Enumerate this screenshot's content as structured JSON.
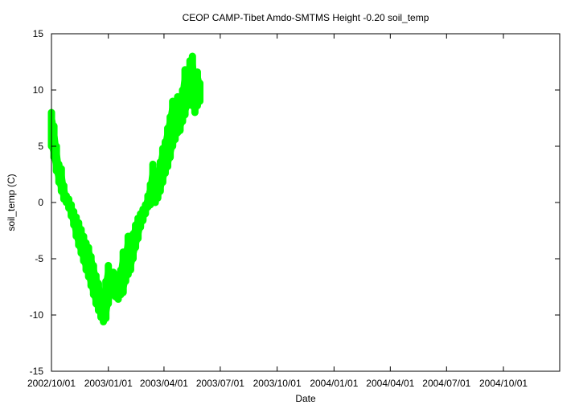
{
  "chart_data": {
    "type": "scatter",
    "title": "CEOP CAMP-Tibet Amdo-SMTMS Height -0.20 soil_temp",
    "xlabel": "Date",
    "ylabel": "soil_temp (C)",
    "x_type": "date",
    "xlim": [
      "2002-10-01",
      "2004-12-31"
    ],
    "ylim": [
      -15,
      15
    ],
    "x_tick_labels": [
      "2002/10/01",
      "2003/01/01",
      "2003/04/01",
      "2003/07/01",
      "2003/10/01",
      "2004/01/01",
      "2004/04/01",
      "2004/07/01",
      "2004/10/01"
    ],
    "y_tick_labels": [
      "-15",
      "-10",
      "-5",
      "0",
      "5",
      "10",
      "15"
    ],
    "grid": false,
    "series": [
      {
        "color": "#00ff00",
        "points": [
          {
            "date": "2002-10-01",
            "min": 5.0,
            "max": 8.0
          },
          {
            "date": "2002-10-05",
            "min": 4.0,
            "max": 6.8
          },
          {
            "date": "2002-10-09",
            "min": 2.8,
            "max": 5.0
          },
          {
            "date": "2002-10-13",
            "min": 1.8,
            "max": 3.4
          },
          {
            "date": "2002-10-17",
            "min": 1.0,
            "max": 3.0
          },
          {
            "date": "2002-10-21",
            "min": 0.3,
            "max": 1.5
          },
          {
            "date": "2002-10-25",
            "min": 0.0,
            "max": 0.6
          },
          {
            "date": "2002-10-29",
            "min": -0.5,
            "max": 0.3
          },
          {
            "date": "2002-11-02",
            "min": -1.2,
            "max": -0.2
          },
          {
            "date": "2002-11-06",
            "min": -2.0,
            "max": -0.8
          },
          {
            "date": "2002-11-10",
            "min": -3.0,
            "max": -1.3
          },
          {
            "date": "2002-11-14",
            "min": -3.8,
            "max": -1.8
          },
          {
            "date": "2002-11-18",
            "min": -4.5,
            "max": -2.4
          },
          {
            "date": "2002-11-22",
            "min": -5.2,
            "max": -3.0
          },
          {
            "date": "2002-11-26",
            "min": -6.0,
            "max": -3.6
          },
          {
            "date": "2002-11-30",
            "min": -6.6,
            "max": -4.0
          },
          {
            "date": "2002-12-04",
            "min": -7.4,
            "max": -4.8
          },
          {
            "date": "2002-12-08",
            "min": -8.2,
            "max": -5.6
          },
          {
            "date": "2002-12-12",
            "min": -9.0,
            "max": -6.5
          },
          {
            "date": "2002-12-16",
            "min": -9.6,
            "max": -7.2
          },
          {
            "date": "2002-12-20",
            "min": -10.2,
            "max": -8.0
          },
          {
            "date": "2002-12-24",
            "min": -10.6,
            "max": -8.4
          },
          {
            "date": "2002-12-28",
            "min": -10.3,
            "max": -7.0
          },
          {
            "date": "2003-01-01",
            "min": -9.0,
            "max": -5.6
          },
          {
            "date": "2003-01-05",
            "min": -8.2,
            "max": -6.3
          },
          {
            "date": "2003-01-09",
            "min": -8.0,
            "max": -6.2
          },
          {
            "date": "2003-01-13",
            "min": -8.4,
            "max": -6.4
          },
          {
            "date": "2003-01-17",
            "min": -8.6,
            "max": -6.6
          },
          {
            "date": "2003-01-21",
            "min": -8.2,
            "max": -6.0
          },
          {
            "date": "2003-01-25",
            "min": -8.0,
            "max": -4.4
          },
          {
            "date": "2003-01-29",
            "min": -7.0,
            "max": -4.5
          },
          {
            "date": "2003-02-02",
            "min": -6.4,
            "max": -3.0
          },
          {
            "date": "2003-02-06",
            "min": -6.0,
            "max": -3.3
          },
          {
            "date": "2003-02-10",
            "min": -5.0,
            "max": -2.8
          },
          {
            "date": "2003-02-14",
            "min": -4.0,
            "max": -2.0
          },
          {
            "date": "2003-02-18",
            "min": -3.2,
            "max": -1.4
          },
          {
            "date": "2003-02-22",
            "min": -2.2,
            "max": -1.0
          },
          {
            "date": "2003-02-26",
            "min": -1.6,
            "max": -0.6
          },
          {
            "date": "2003-03-02",
            "min": -1.0,
            "max": -0.2
          },
          {
            "date": "2003-03-06",
            "min": -0.4,
            "max": 0.6
          },
          {
            "date": "2003-03-10",
            "min": -0.2,
            "max": 1.6
          },
          {
            "date": "2003-03-14",
            "min": 0.2,
            "max": 3.4
          },
          {
            "date": "2003-03-18",
            "min": 0.0,
            "max": 2.2
          },
          {
            "date": "2003-03-22",
            "min": 0.4,
            "max": 2.6
          },
          {
            "date": "2003-03-26",
            "min": 1.0,
            "max": 3.6
          },
          {
            "date": "2003-03-30",
            "min": 1.8,
            "max": 4.8
          },
          {
            "date": "2003-04-03",
            "min": 2.6,
            "max": 5.4
          },
          {
            "date": "2003-04-07",
            "min": 3.2,
            "max": 6.6
          },
          {
            "date": "2003-04-11",
            "min": 4.0,
            "max": 7.6
          },
          {
            "date": "2003-04-15",
            "min": 5.0,
            "max": 9.0
          },
          {
            "date": "2003-04-19",
            "min": 5.6,
            "max": 8.6
          },
          {
            "date": "2003-04-23",
            "min": 6.2,
            "max": 9.4
          },
          {
            "date": "2003-04-27",
            "min": 6.4,
            "max": 9.2
          },
          {
            "date": "2003-05-01",
            "min": 7.2,
            "max": 10.0
          },
          {
            "date": "2003-05-05",
            "min": 7.8,
            "max": 11.8
          },
          {
            "date": "2003-05-09",
            "min": 8.6,
            "max": 11.6
          },
          {
            "date": "2003-05-13",
            "min": 9.0,
            "max": 12.6
          },
          {
            "date": "2003-05-17",
            "min": 8.6,
            "max": 13.0
          },
          {
            "date": "2003-05-21",
            "min": 8.0,
            "max": 11.2
          },
          {
            "date": "2003-05-25",
            "min": 8.6,
            "max": 11.6
          },
          {
            "date": "2003-05-29",
            "min": 9.0,
            "max": 10.6
          }
        ]
      }
    ]
  }
}
